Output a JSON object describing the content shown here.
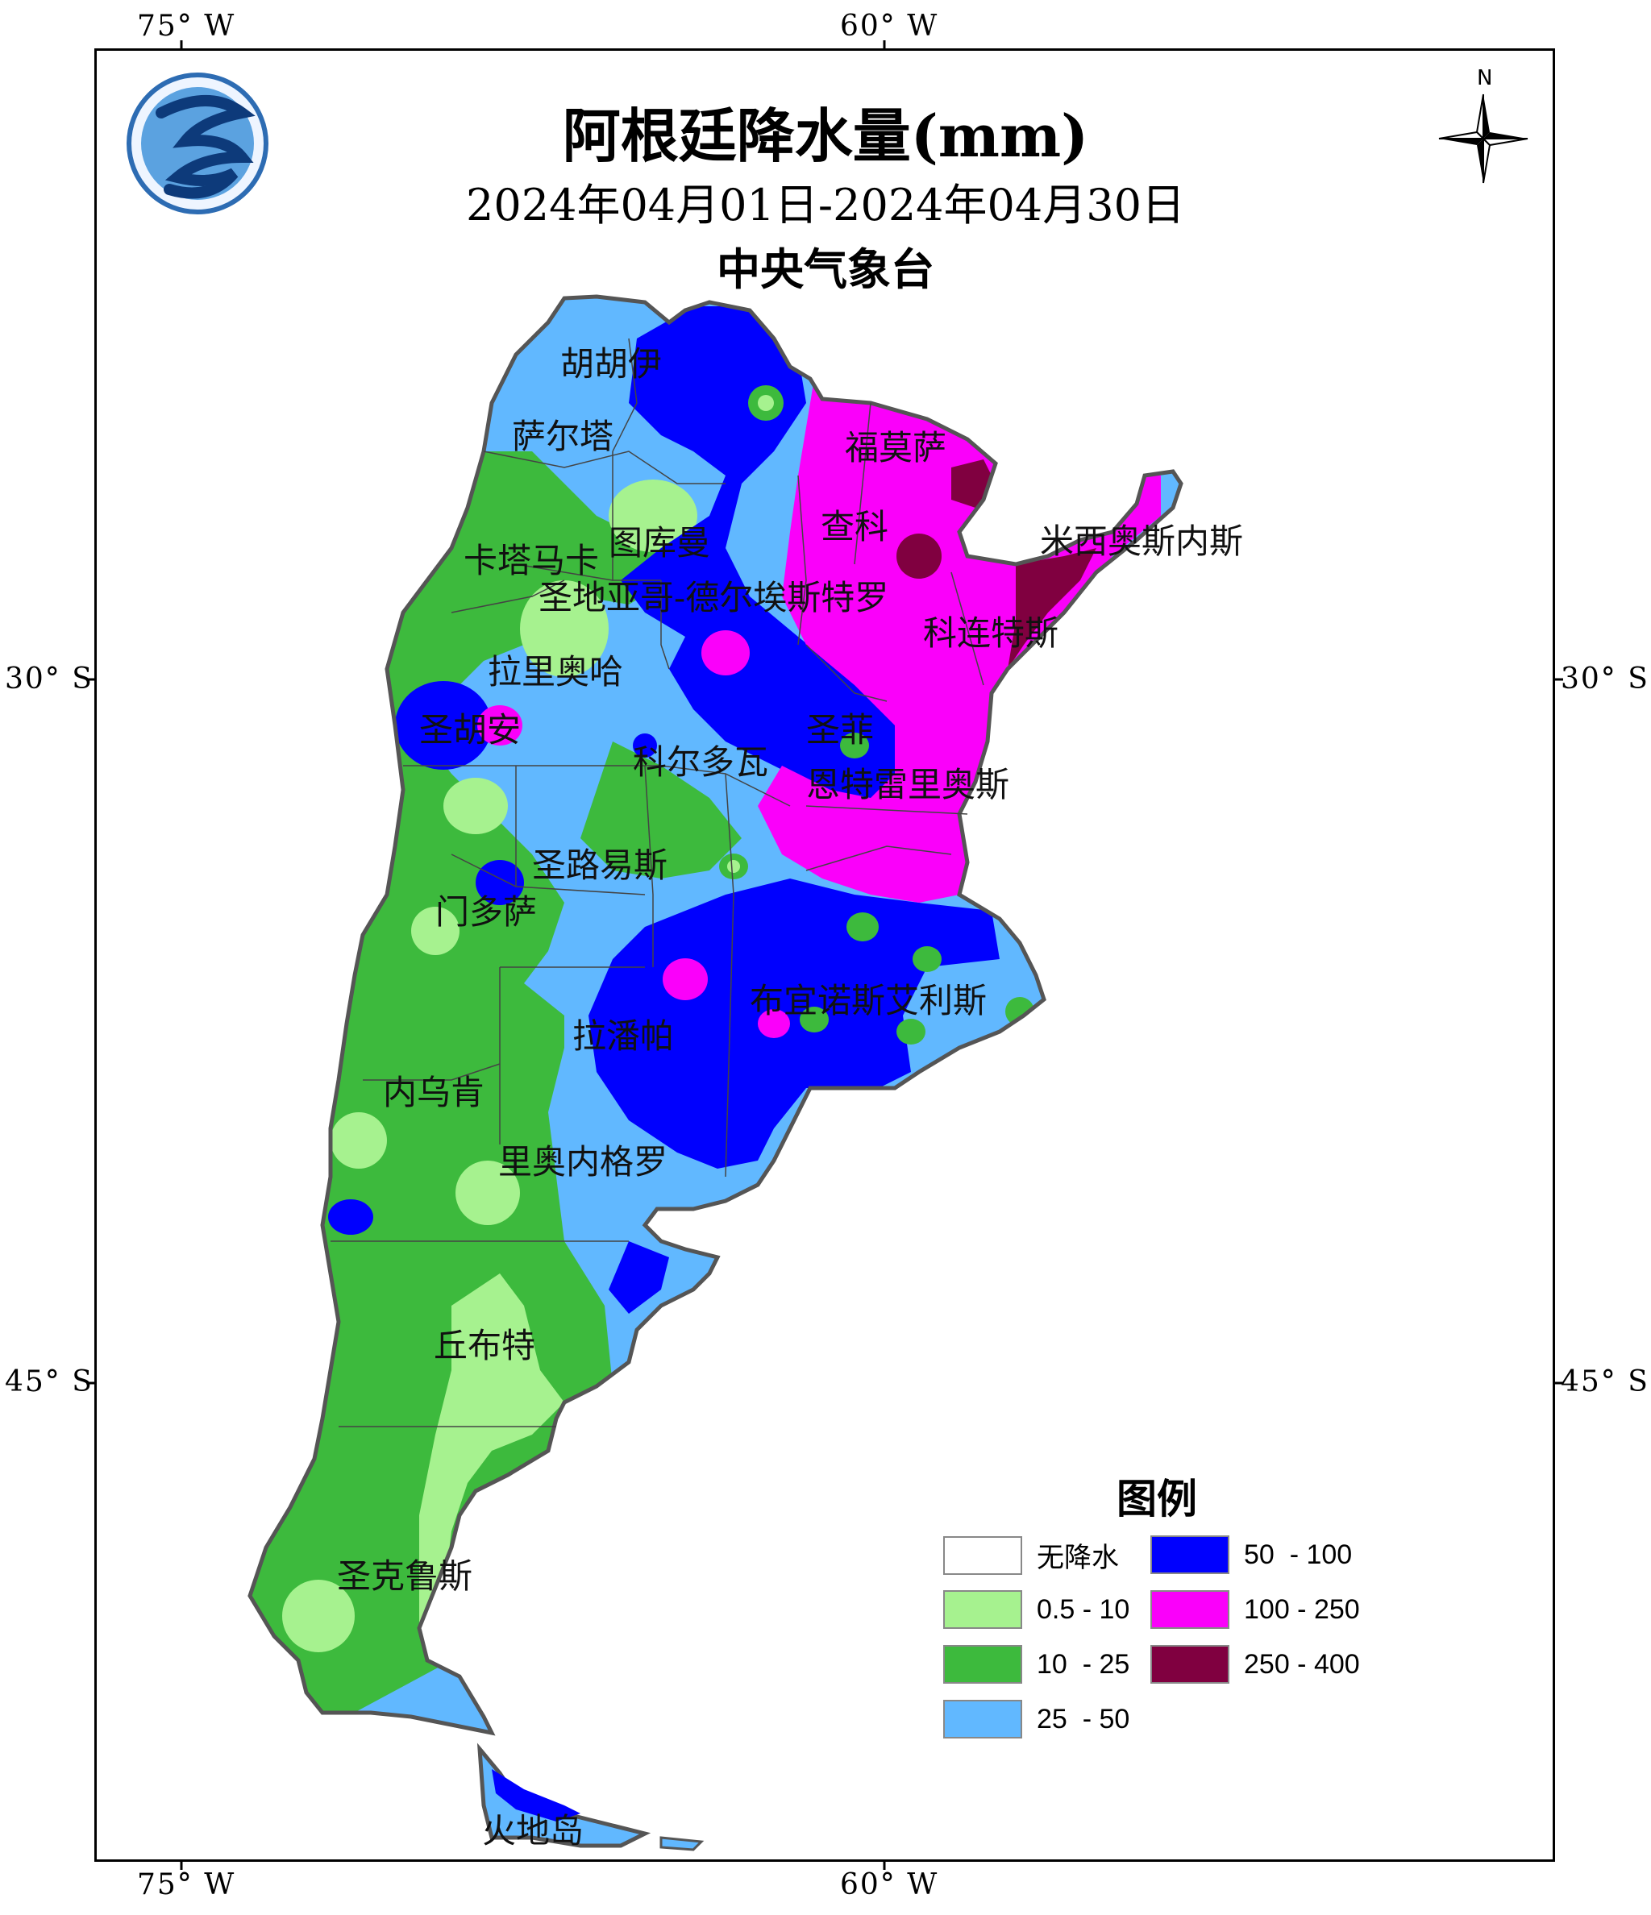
{
  "map": {
    "title": "阿根廷降水量(mm)",
    "date_range": "2024年04月01日-2024年04月30日",
    "agency": "中央气象台",
    "north": "N",
    "lon_labels": [
      "75° W",
      "60° W"
    ],
    "lat_labels": [
      "30° S",
      "45° S"
    ],
    "places": [
      "胡胡伊",
      "萨尔塔",
      "福莫萨",
      "查科",
      "图库曼",
      "卡塔马卡",
      "米西奥斯内斯",
      "圣地亚哥-德尔埃斯特罗",
      "科连特斯",
      "拉里奥哈",
      "圣胡安",
      "圣菲",
      "科尔多瓦",
      "恩特雷里奥斯",
      "圣路易斯",
      "门多萨",
      "布宜诺斯艾利斯",
      "拉潘帕",
      "内乌肯",
      "里奥内格罗",
      "丘布特",
      "圣克鲁斯",
      "火地岛"
    ]
  },
  "legend": {
    "title": "图例",
    "items": [
      {
        "label": "无降水",
        "color": "#ffffff"
      },
      {
        "label": "0.5 - 10",
        "color": "#a6f28f"
      },
      {
        "label": "10  - 25",
        "color": "#3dba3d"
      },
      {
        "label": "25  - 50",
        "color": "#61b8ff"
      },
      {
        "label": "50  - 100",
        "color": "#0000fe"
      },
      {
        "label": "100 - 250",
        "color": "#fa00fa"
      },
      {
        "label": "250 - 400",
        "color": "#800040"
      }
    ]
  }
}
